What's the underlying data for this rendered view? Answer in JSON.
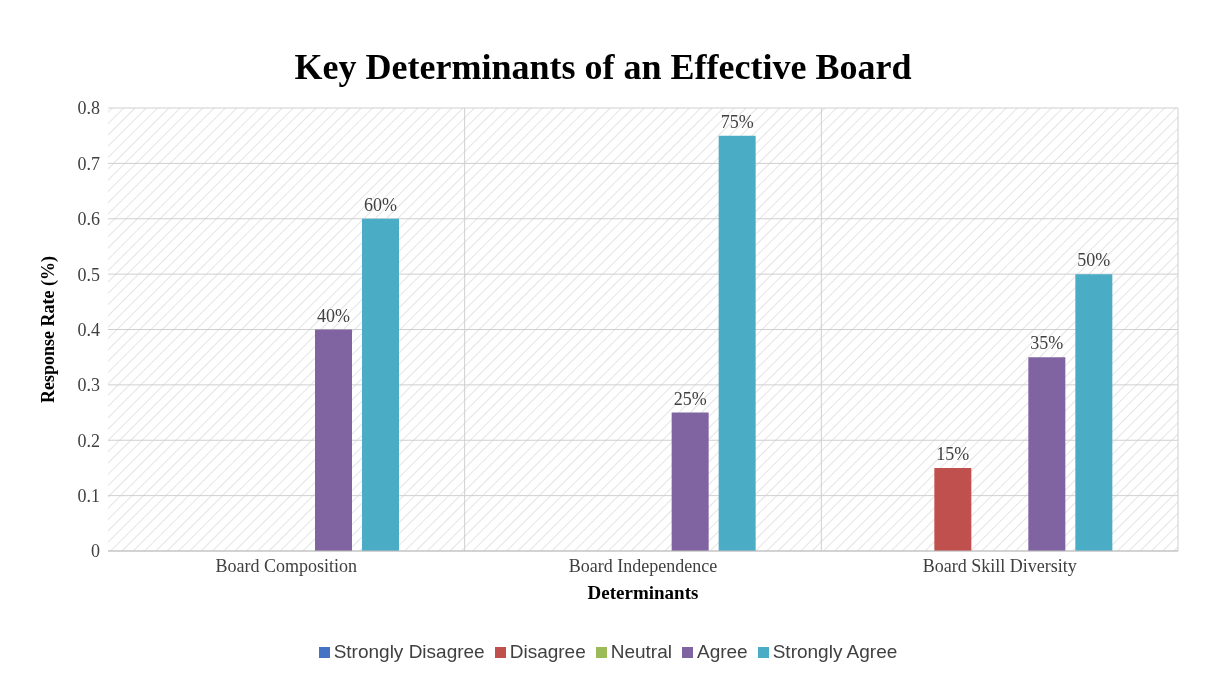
{
  "chart_data": {
    "type": "bar",
    "title": "Key Determinants  of an Effective Board",
    "xlabel": "Determinants",
    "ylabel": "Response Rate (%)",
    "categories": [
      "Board Composition",
      "Board Independence",
      "Board Skill Diversity"
    ],
    "series": [
      {
        "name": "Strongly Disagree",
        "color": "#4472c4",
        "values": [
          0,
          0,
          0
        ],
        "value_labels": [
          null,
          null,
          null
        ]
      },
      {
        "name": "Disagree",
        "color": "#c0504d",
        "values": [
          0,
          0,
          0.15
        ],
        "value_labels": [
          null,
          null,
          "15%"
        ]
      },
      {
        "name": "Neutral",
        "color": "#9bbb59",
        "values": [
          0,
          0,
          0
        ],
        "value_labels": [
          null,
          null,
          null
        ]
      },
      {
        "name": "Agree",
        "color": "#8064a2",
        "values": [
          0.4,
          0.25,
          0.35
        ],
        "value_labels": [
          "40%",
          "25%",
          "35%"
        ]
      },
      {
        "name": "Strongly Agree",
        "color": "#4bacc6",
        "values": [
          0.6,
          0.75,
          0.5
        ],
        "value_labels": [
          "60%",
          "75%",
          "50%"
        ]
      }
    ],
    "ylim": [
      0,
      0.8
    ],
    "yticks": [
      0,
      0.1,
      0.2,
      0.3,
      0.4,
      0.5,
      0.6,
      0.7,
      0.8
    ],
    "grid": true,
    "legend": "bottom"
  }
}
